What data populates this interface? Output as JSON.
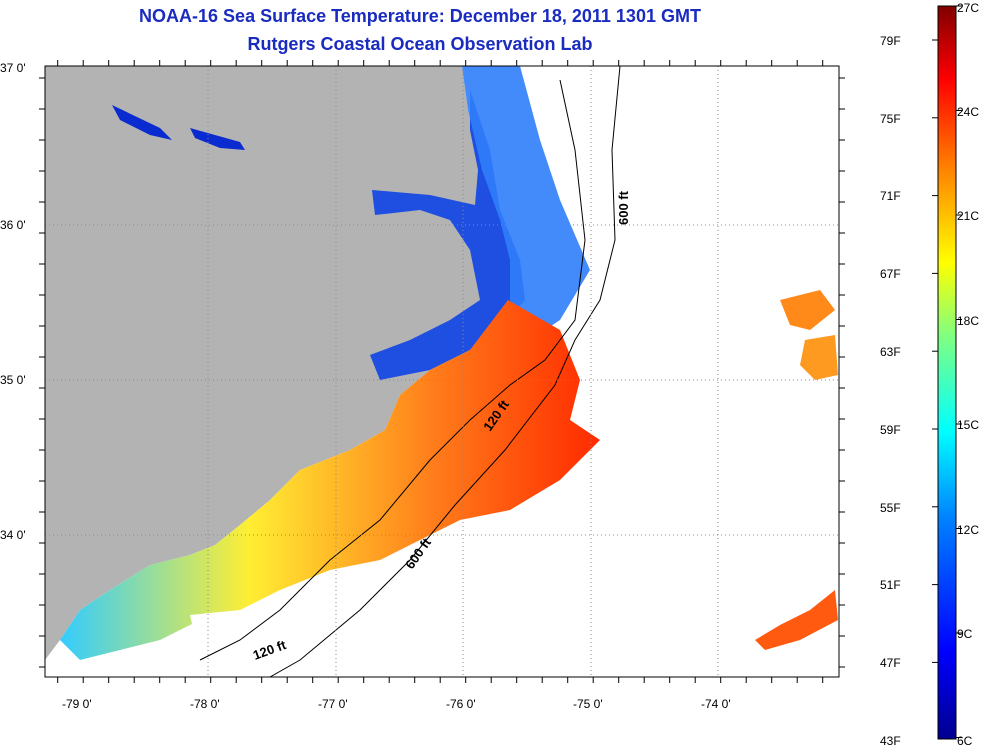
{
  "title": "NOAA-16 Sea Surface Temperature:  December 18, 2011 1301 GMT",
  "subtitle": "Rutgers Coastal Ocean Observation Lab",
  "lat_labels": [
    "37 0'",
    "36 0'",
    "35 0'",
    "34 0'"
  ],
  "lon_labels": [
    "-79 0'",
    "-78 0'",
    "-77 0'",
    "-76 0'",
    "-75 0'",
    "-74 0'"
  ],
  "contour_labels": [
    "600 ft",
    "120 ft",
    "600 ft",
    "120 ft"
  ],
  "colorbar": {
    "fahrenheit_labels": [
      "79F",
      "75F",
      "71F",
      "67F",
      "63F",
      "59F",
      "55F",
      "51F",
      "47F",
      "43F"
    ],
    "celsius_labels": [
      "27C",
      "24C",
      "21C",
      "18C",
      "15C",
      "12C",
      "9C",
      "6C"
    ]
  },
  "colors": {
    "title": "#1a2bbf",
    "land": "#b3b3b3",
    "ocean_no_data": "#ffffff"
  }
}
